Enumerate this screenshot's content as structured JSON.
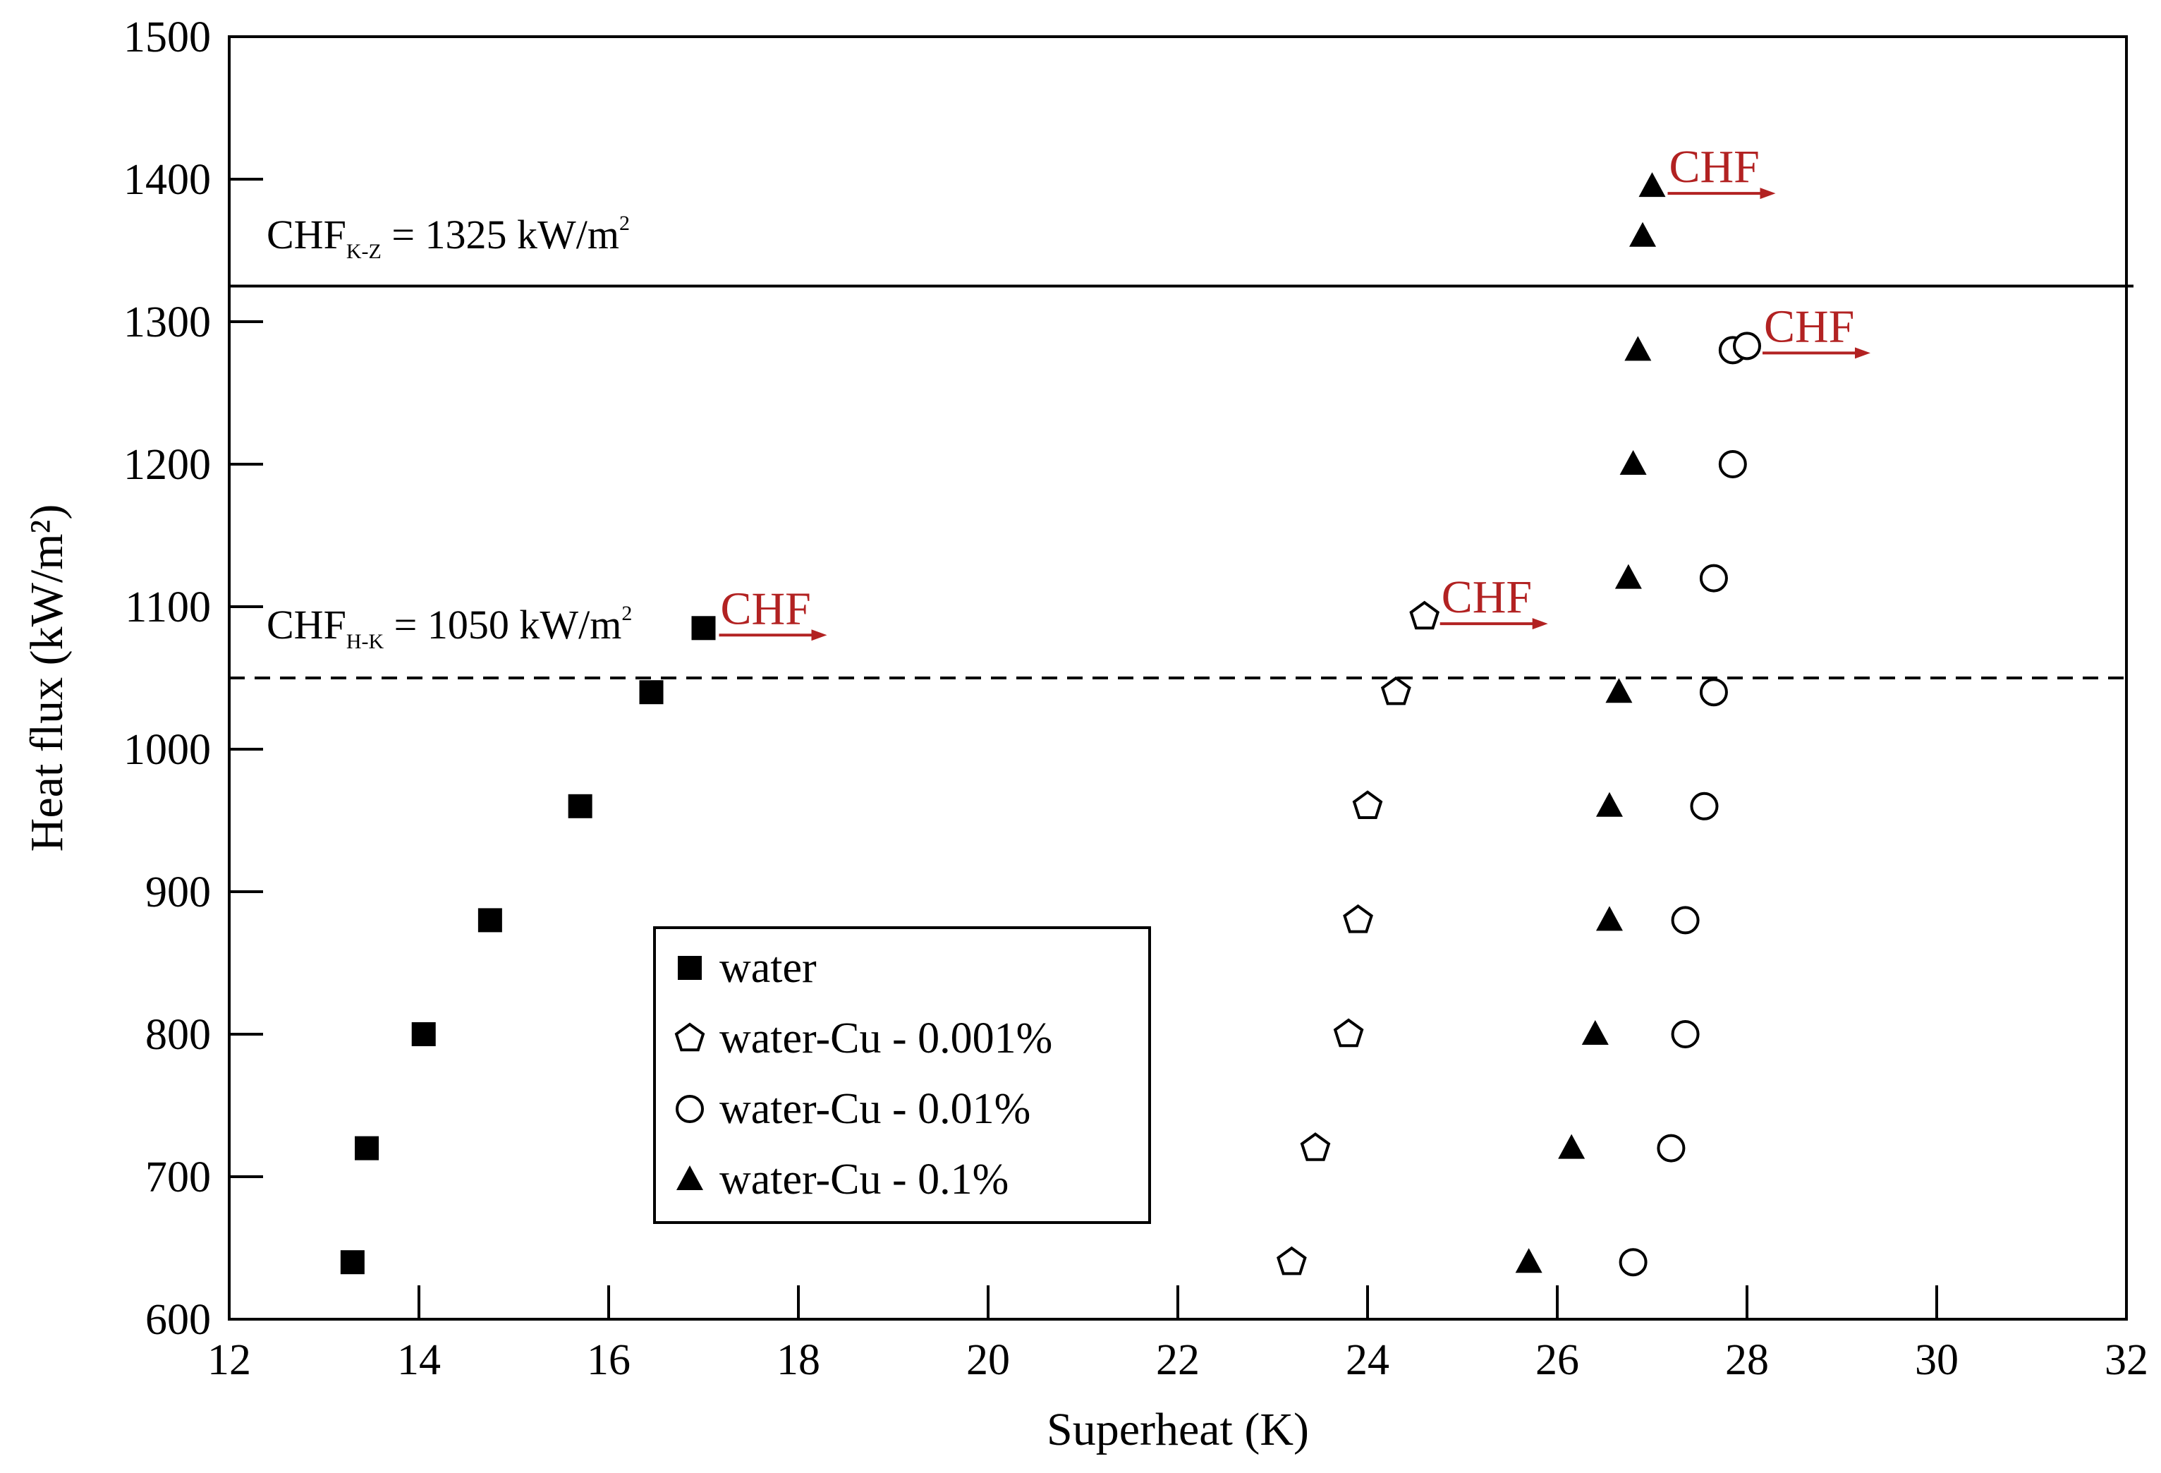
{
  "chart_data": {
    "type": "scatter",
    "xlabel": "Superheat (K)",
    "ylabel": "Heat flux (kW/m²)",
    "xlim": [
      12,
      32
    ],
    "ylim": [
      600,
      1500
    ],
    "xticks": [
      12,
      14,
      16,
      18,
      20,
      22,
      24,
      26,
      28,
      30,
      32
    ],
    "yticks": [
      600,
      700,
      800,
      900,
      1000,
      1100,
      1200,
      1300,
      1400,
      1500
    ],
    "x_tick_labels": [
      "12",
      "14",
      "16",
      "18",
      "20",
      "22",
      "24",
      "26",
      "28",
      "30",
      "32"
    ],
    "y_tick_labels": [
      "600",
      "700",
      "800",
      "900",
      "1000",
      "1100",
      "1200",
      "1300",
      "1400",
      "1500"
    ],
    "grid": false,
    "series": [
      {
        "name": "water",
        "marker": "filled-square",
        "x": [
          13.3,
          13.45,
          14.05,
          14.75,
          15.7,
          16.45,
          17.0
        ],
        "y": [
          640,
          720,
          800,
          880,
          960,
          1040,
          1085
        ]
      },
      {
        "name": "water-Cu - 0.001%",
        "marker": "open-pentagon",
        "x": [
          23.2,
          23.45,
          23.8,
          23.9,
          24.0,
          24.3,
          24.6
        ],
        "y": [
          640,
          720,
          800,
          880,
          960,
          1040,
          1093
        ]
      },
      {
        "name": "water-Cu - 0.01%",
        "marker": "open-circle",
        "x": [
          26.8,
          27.2,
          27.35,
          27.35,
          27.55,
          27.65,
          27.65,
          27.85,
          27.85,
          28.0
        ],
        "y": [
          640,
          720,
          800,
          880,
          960,
          1040,
          1120,
          1200,
          1280,
          1283
        ]
      },
      {
        "name": "water-Cu - 0.1%",
        "marker": "filled-triangle",
        "x": [
          25.7,
          26.15,
          26.4,
          26.55,
          26.55,
          26.65,
          26.75,
          26.8,
          26.85,
          26.9,
          27.0
        ],
        "y": [
          640,
          720,
          800,
          880,
          960,
          1040,
          1120,
          1200,
          1280,
          1360,
          1395
        ]
      }
    ],
    "reference_lines": [
      {
        "name": "CHF K-Z",
        "value": 1325,
        "style": "solid",
        "label_main": "CHF",
        "label_sub": "K-Z",
        "label_rest": " = 1325 kW/m",
        "label_sup": "2"
      },
      {
        "name": "CHF H-K",
        "value": 1050,
        "style": "dashed",
        "label_main": "CHF",
        "label_sub": "H-K",
        "label_rest": " = 1050 kW/m",
        "label_sup": "2"
      }
    ],
    "annotations": [
      {
        "text": "CHF",
        "x": 17.0,
        "y": 1085
      },
      {
        "text": "CHF",
        "x": 24.6,
        "y": 1093
      },
      {
        "text": "CHF",
        "x": 27.0,
        "y": 1395
      },
      {
        "text": "CHF",
        "x": 28.0,
        "y": 1283
      }
    ],
    "legend": {
      "placement": "lower-center",
      "entries": [
        "water",
        "water-Cu - 0.001%",
        "water-Cu - 0.01%",
        "water-Cu - 0.1%"
      ]
    },
    "colors": {
      "axis": "#000000",
      "annotation": "#b22222"
    }
  }
}
